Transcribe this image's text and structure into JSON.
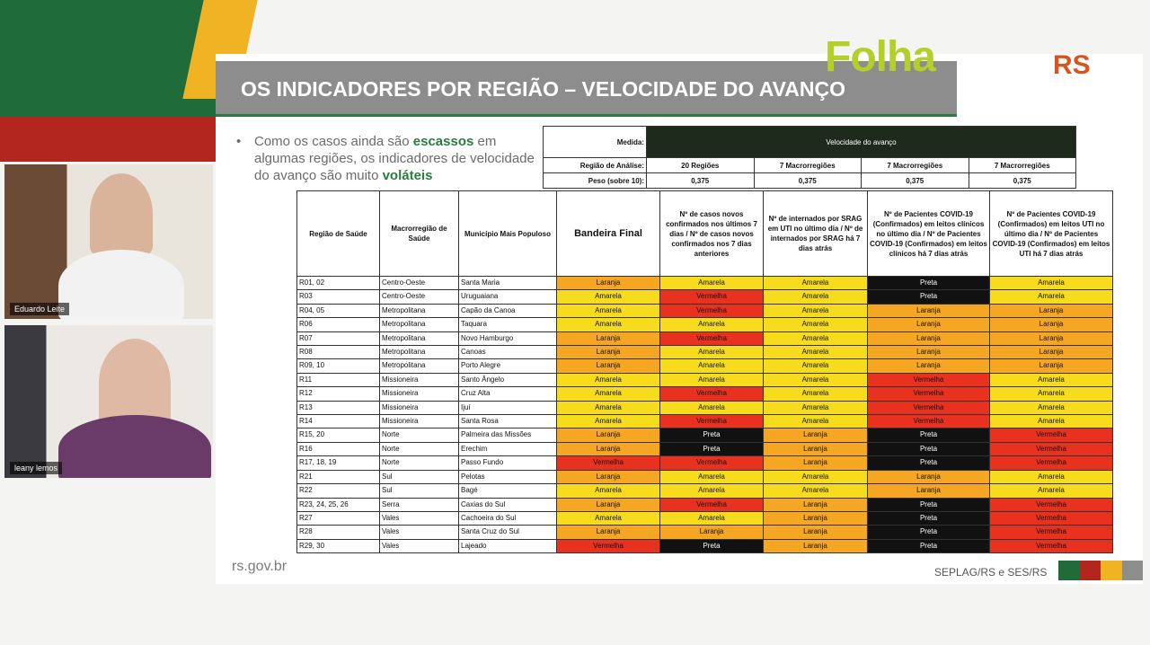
{
  "slide": {
    "title": "OS INDICADORES POR REGIÃO – VELOCIDADE DO AVANÇO",
    "bullet": [
      {
        "text": "Como os casos ainda são "
      },
      {
        "text": "escassos",
        "em": true
      },
      {
        "text": " em algumas regiões, os indicadores de velocidade do avanço são muito "
      },
      {
        "text": "voláteis",
        "em": true
      }
    ]
  },
  "brand": {
    "logo": "Folha",
    "partner": "RS"
  },
  "participants": [
    "Eduardo Leite",
    "leany lemos"
  ],
  "footer": {
    "left": "rs.gov.br",
    "right": "SEPLAG/RS e SES/RS"
  },
  "flag_colors": {
    "Amarela": "#f6dc1c",
    "Laranja": "#f5a623",
    "Vermelha": "#e8321f",
    "Preta": "#111111"
  },
  "table": {
    "measure_label": "Medida:",
    "measure": "Velocidade do avanço",
    "region_label": "Região de Análise:",
    "regions": [
      "20 Regiões",
      "7 Macrorregiões",
      "7 Macrorregiões",
      "7 Macrorregiões"
    ],
    "weight_label": "Peso (sobre 10):",
    "weights": [
      "0,375",
      "0,375",
      "0,375",
      "0,375"
    ],
    "headers": [
      "Região de Saúde",
      "Macrorregião de Saúde",
      "Município Mais Populoso",
      "Bandeira Final",
      "Nº de casos novos confirmados nos últimos 7 dias / Nº de casos novos confirmados nos 7 dias anteriores",
      "Nº de internados por SRAG em UTI no último dia / Nº de internados por SRAG há 7 dias atrás",
      "Nº de Pacientes COVID-19 (Confirmados) em leitos clínicos no último dia / Nº de Pacientes COVID-19 (Confirmados) em leitos clínicos há 7 dias atrás",
      "Nº de Pacientes COVID-19 (Confirmados) em leitos UTI no último dia / Nº de Pacientes COVID-19 (Confirmados) em leitos UTI há 7 dias atrás"
    ],
    "rows": [
      [
        "R01, 02",
        "Centro-Oeste",
        "Santa Maria",
        "Laranja",
        "Amarela",
        "Amarela",
        "Preta",
        "Amarela"
      ],
      [
        "R03",
        "Centro-Oeste",
        "Uruguaiana",
        "Amarela",
        "Vermelha",
        "Amarela",
        "Preta",
        "Amarela"
      ],
      [
        "R04, 05",
        "Metropolitana",
        "Capão da Canoa",
        "Amarela",
        "Vermelha",
        "Amarela",
        "Laranja",
        "Laranja"
      ],
      [
        "R06",
        "Metropolitana",
        "Taquara",
        "Amarela",
        "Amarela",
        "Amarela",
        "Laranja",
        "Laranja"
      ],
      [
        "R07",
        "Metropolitana",
        "Novo Hamburgo",
        "Laranja",
        "Vermelha",
        "Amarela",
        "Laranja",
        "Laranja"
      ],
      [
        "R08",
        "Metropolitana",
        "Canoas",
        "Laranja",
        "Amarela",
        "Amarela",
        "Laranja",
        "Laranja"
      ],
      [
        "R09, 10",
        "Metropolitana",
        "Porto Alegre",
        "Laranja",
        "Amarela",
        "Amarela",
        "Laranja",
        "Laranja"
      ],
      [
        "R11",
        "Missioneira",
        "Santo Ângelo",
        "Amarela",
        "Amarela",
        "Amarela",
        "Vermelha",
        "Amarela"
      ],
      [
        "R12",
        "Missioneira",
        "Cruz Alta",
        "Amarela",
        "Vermelha",
        "Amarela",
        "Vermelha",
        "Amarela"
      ],
      [
        "R13",
        "Missioneira",
        "Ijuí",
        "Amarela",
        "Amarela",
        "Amarela",
        "Vermelha",
        "Amarela"
      ],
      [
        "R14",
        "Missioneira",
        "Santa Rosa",
        "Amarela",
        "Vermelha",
        "Amarela",
        "Vermelha",
        "Amarela"
      ],
      [
        "R15, 20",
        "Norte",
        "Palmeira das Missões",
        "Laranja",
        "Preta",
        "Laranja",
        "Preta",
        "Vermelha"
      ],
      [
        "R16",
        "Norte",
        "Erechim",
        "Laranja",
        "Preta",
        "Laranja",
        "Preta",
        "Vermelha"
      ],
      [
        "R17, 18, 19",
        "Norte",
        "Passo Fundo",
        "Vermelha",
        "Vermelha",
        "Laranja",
        "Preta",
        "Vermelha"
      ],
      [
        "R21",
        "Sul",
        "Pelotas",
        "Laranja",
        "Amarela",
        "Amarela",
        "Laranja",
        "Amarela"
      ],
      [
        "R22",
        "Sul",
        "Bagé",
        "Amarela",
        "Amarela",
        "Amarela",
        "Laranja",
        "Amarela"
      ],
      [
        "R23, 24, 25, 26",
        "Serra",
        "Caxias do Sul",
        "Laranja",
        "Vermelha",
        "Laranja",
        "Preta",
        "Vermelha"
      ],
      [
        "R27",
        "Vales",
        "Cachoeira do Sul",
        "Amarela",
        "Amarela",
        "Laranja",
        "Preta",
        "Vermelha"
      ],
      [
        "R28",
        "Vales",
        "Santa Cruz do Sul",
        "Laranja",
        "Laranja",
        "Laranja",
        "Preta",
        "Vermelha"
      ],
      [
        "R29, 30",
        "Vales",
        "Lajeado",
        "Vermelha",
        "Preta",
        "Laranja",
        "Preta",
        "Vermelha"
      ]
    ]
  }
}
